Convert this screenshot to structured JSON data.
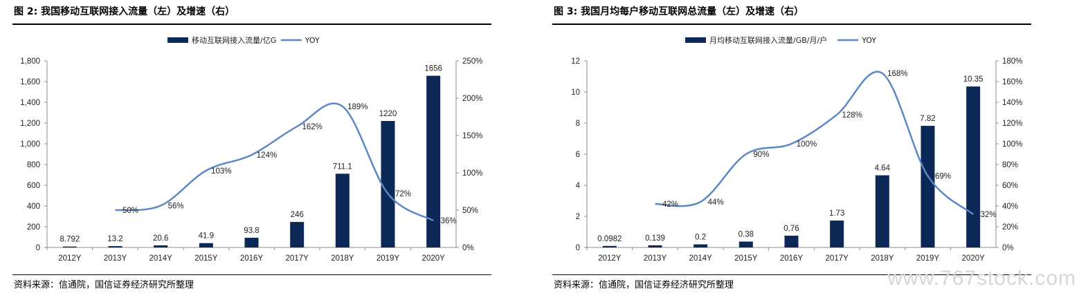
{
  "figures": [
    {
      "title": "图 2:  我国移动互联网接入流量（左）及增速（右）",
      "source": "资料来源：信通院，国信证券经济研究所整理"
    },
    {
      "title": "图 3:  我国月均每户移动互联网总流量（左）及增速（右）",
      "source": "资料来源：信通院，国信证券经济研究所整理"
    }
  ],
  "watermark": "www.767stock.com",
  "colors": {
    "bar": "#0c2857",
    "line": "#5b87c7"
  },
  "chart_data": [
    {
      "type": "bar",
      "categories": [
        "2012Y",
        "2013Y",
        "2014Y",
        "2015Y",
        "2016Y",
        "2017Y",
        "2018Y",
        "2019Y",
        "2020Y"
      ],
      "series": [
        {
          "name": "移动互联网接入流量/亿G",
          "type": "bar",
          "axis": "left",
          "values": [
            8.792,
            13.2,
            20.6,
            41.9,
            93.8,
            246,
            711.1,
            1220,
            1656
          ],
          "labels": [
            "8.792",
            "13.2",
            "20.6",
            "41.9",
            "93.8",
            "246",
            "711.1",
            "1220",
            "1656"
          ]
        },
        {
          "name": "YOY",
          "type": "line",
          "axis": "right",
          "values": [
            null,
            50,
            56,
            103,
            124,
            162,
            189,
            72,
            36
          ],
          "labels": [
            "",
            "50%",
            "56%",
            "103%",
            "124%",
            "162%",
            "189%",
            "72%",
            "36%"
          ]
        }
      ],
      "ylim_left": [
        0,
        1800
      ],
      "yticks_left": [
        "0",
        "200",
        "400",
        "600",
        "800",
        "1,000",
        "1,200",
        "1,400",
        "1,600",
        "1,800"
      ],
      "ylim_right": [
        0,
        250
      ],
      "yticks_right": [
        "0%",
        "50%",
        "100%",
        "150%",
        "200%",
        "250%"
      ],
      "grid": false,
      "legend": "top-center"
    },
    {
      "type": "bar",
      "categories": [
        "2012Y",
        "2013Y",
        "2014Y",
        "2015Y",
        "2016Y",
        "2017Y",
        "2018Y",
        "2019Y",
        "2020Y"
      ],
      "series": [
        {
          "name": "月均移动互联网接入流量/GB/月/户",
          "type": "bar",
          "axis": "left",
          "values": [
            0.0982,
            0.139,
            0.2,
            0.38,
            0.76,
            1.73,
            4.64,
            7.82,
            10.35
          ],
          "labels": [
            "0.0982",
            "0.139",
            "0.2",
            "0.38",
            "0.76",
            "1.73",
            "4.64",
            "7.82",
            "10.35"
          ]
        },
        {
          "name": "YOY",
          "type": "line",
          "axis": "right",
          "values": [
            null,
            42,
            44,
            90,
            100,
            128,
            168,
            69,
            32
          ],
          "labels": [
            "",
            "42%",
            "44%",
            "90%",
            "100%",
            "128%",
            "168%",
            "69%",
            "32%"
          ]
        }
      ],
      "ylim_left": [
        0,
        12
      ],
      "yticks_left": [
        "0",
        "2",
        "4",
        "6",
        "8",
        "10",
        "12"
      ],
      "ylim_right": [
        0,
        180
      ],
      "yticks_right": [
        "0%",
        "20%",
        "40%",
        "60%",
        "80%",
        "100%",
        "120%",
        "140%",
        "160%",
        "180%"
      ],
      "grid": false,
      "legend": "top-center"
    }
  ]
}
